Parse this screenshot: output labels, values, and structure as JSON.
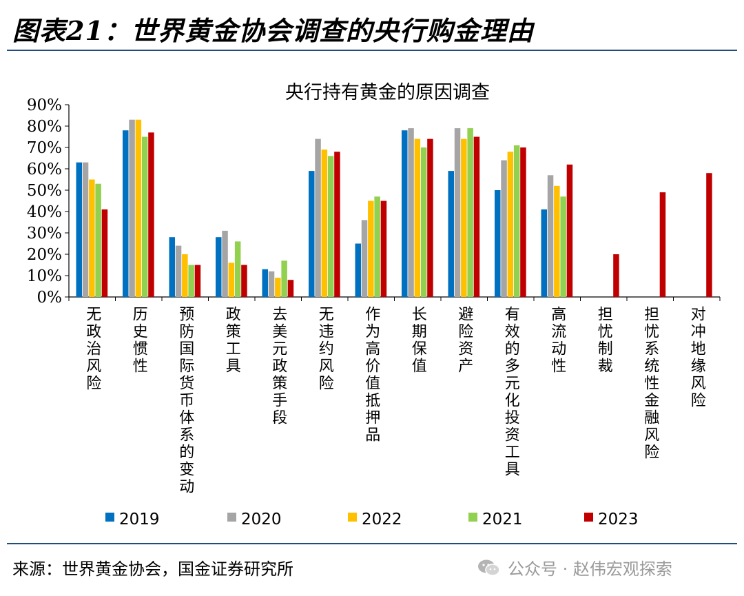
{
  "header": {
    "figure_title": "图表21：世界黄金协会调查的央行购金理由"
  },
  "footer": {
    "source": "来源：世界黄金协会，国金证券研究所",
    "watermark": "公众号 · 赵伟宏观探索"
  },
  "colors": {
    "rule": "#1f4e79",
    "series": [
      "#0070c0",
      "#a5a5a5",
      "#ffc000",
      "#92d050",
      "#c00000"
    ]
  },
  "icons": {
    "watermark": "wechat-icon"
  },
  "chart_data": {
    "type": "bar",
    "title": "央行持有黄金的原因调查",
    "xlabel": "",
    "ylabel": "",
    "ylim": [
      0,
      90
    ],
    "yticks": [
      "0%",
      "10%",
      "20%",
      "30%",
      "40%",
      "50%",
      "60%",
      "70%",
      "80%",
      "90%"
    ],
    "grid": false,
    "legend_position": "bottom",
    "categories": [
      "无政治风险",
      "历史惯性",
      "预防国际货币体系的变动",
      "政策工具",
      "去美元政策手段",
      "无违约风险",
      "作为高价值抵押品",
      "长期保值",
      "避险资产",
      "有效的多元化投资工具",
      "高流动性",
      "担忧制裁",
      "担忧系统性金融风险",
      "对冲地缘风险"
    ],
    "series": [
      {
        "name": "2019",
        "values": [
          63,
          78,
          28,
          28,
          13,
          59,
          25,
          78,
          59,
          50,
          41,
          null,
          null,
          null
        ]
      },
      {
        "name": "2020",
        "values": [
          63,
          83,
          24,
          31,
          12,
          74,
          36,
          79,
          79,
          64,
          57,
          null,
          null,
          null
        ]
      },
      {
        "name": "2022",
        "values": [
          55,
          83,
          20,
          16,
          9,
          69,
          45,
          74,
          74,
          68,
          52,
          null,
          null,
          null
        ]
      },
      {
        "name": "2021",
        "values": [
          53,
          75,
          15,
          26,
          17,
          66,
          47,
          70,
          79,
          71,
          47,
          null,
          null,
          null
        ]
      },
      {
        "name": "2023",
        "values": [
          41,
          77,
          15,
          15,
          8,
          68,
          45,
          74,
          75,
          70,
          62,
          20,
          49,
          58
        ]
      }
    ]
  }
}
